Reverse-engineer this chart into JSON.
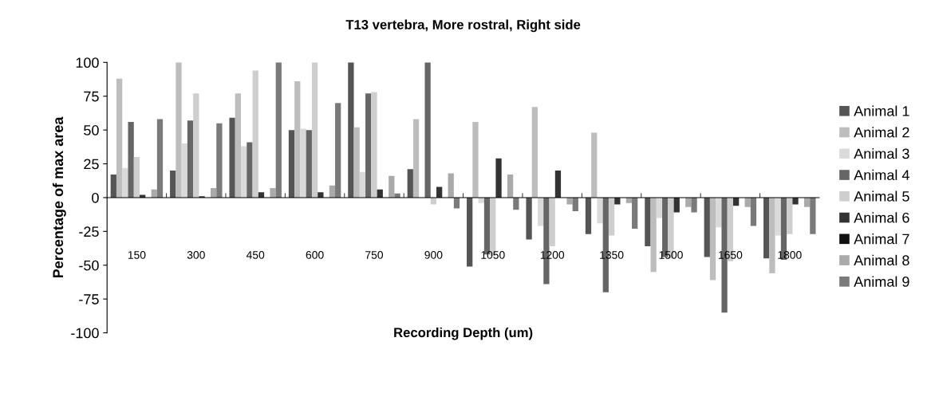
{
  "chart_data": {
    "type": "bar",
    "title": "T13 vertebra, More rostral, Right side",
    "xlabel": "Recording Depth (um)",
    "ylabel": "Percentage of max area",
    "categories": [
      "150",
      "300",
      "450",
      "600",
      "750",
      "900",
      "1050",
      "1200",
      "1350",
      "1500",
      "1650",
      "1800"
    ],
    "series": [
      {
        "name": "Animal 1",
        "color": "#555555",
        "values": [
          17,
          20,
          59,
          50,
          100,
          21,
          -51,
          -31,
          -27,
          -36,
          -44,
          -45
        ]
      },
      {
        "name": "Animal 2",
        "color": "#bdbdbd",
        "values": [
          88,
          100,
          77,
          86,
          52,
          58,
          56,
          67,
          48,
          -55,
          -61,
          -56
        ]
      },
      {
        "name": "Animal 3",
        "color": "#dadada",
        "values": [
          22,
          40,
          38,
          51,
          19,
          0,
          -4,
          -21,
          -19,
          -15,
          -22,
          -28
        ]
      },
      {
        "name": "Animal 4",
        "color": "#666666",
        "values": [
          56,
          57,
          41,
          50,
          77,
          100,
          -42,
          -64,
          -70,
          -44,
          -85,
          -46
        ]
      },
      {
        "name": "Animal 5",
        "color": "#cecece",
        "values": [
          30,
          77,
          94,
          100,
          78,
          -5,
          -43,
          -36,
          -28,
          -45,
          -47,
          -27
        ]
      },
      {
        "name": "Animal 6",
        "color": "#333333",
        "values": [
          2,
          1,
          4,
          4,
          6,
          8,
          29,
          20,
          -5,
          -11,
          -6,
          -5
        ]
      },
      {
        "name": "Animal 7",
        "color": "#111111",
        "values": [
          0,
          0,
          0,
          0,
          0,
          0,
          0,
          0,
          0,
          0,
          0,
          0
        ]
      },
      {
        "name": "Animal 8",
        "color": "#aaaaaa",
        "values": [
          6,
          7,
          7,
          9,
          16,
          18,
          17,
          -5,
          -4,
          -7,
          -7,
          -7
        ]
      },
      {
        "name": "Animal 9",
        "color": "#7a7a7a",
        "values": [
          58,
          55,
          100,
          70,
          3,
          -8,
          -9,
          -10,
          -23,
          -11,
          -21,
          -27
        ]
      }
    ],
    "ylim": [
      -100,
      100
    ],
    "yticks": [
      100,
      75,
      50,
      25,
      0,
      -25,
      -50,
      -75,
      -100
    ],
    "legend": "right"
  }
}
